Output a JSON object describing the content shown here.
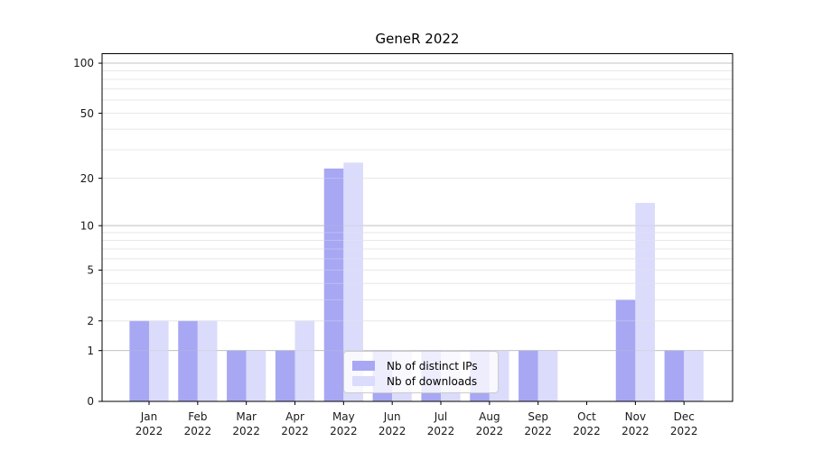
{
  "chart_data": {
    "type": "bar",
    "title": "GeneR 2022",
    "x_months": [
      "Jan",
      "Feb",
      "Mar",
      "Apr",
      "May",
      "Jun",
      "Jul",
      "Aug",
      "Sep",
      "Oct",
      "Nov",
      "Dec"
    ],
    "x_year": "2022",
    "series": [
      {
        "name": "Nb of distinct IPs",
        "color": "#a7a7f4",
        "values": [
          2,
          2,
          1,
          1,
          23,
          1,
          1,
          1,
          1,
          0,
          3,
          1
        ]
      },
      {
        "name": "Nb of downloads",
        "color": "#dbdbfb",
        "values": [
          2,
          2,
          1,
          2,
          25,
          1,
          1,
          1,
          1,
          0,
          14,
          1
        ]
      }
    ],
    "yscale": "log1p",
    "ylim": [
      0,
      114
    ],
    "yticks": [
      0,
      1,
      2,
      5,
      10,
      20,
      50,
      100
    ],
    "gridlines": {
      "major": [
        1,
        10,
        100
      ],
      "minor": [
        2,
        3,
        4,
        5,
        6,
        7,
        8,
        9,
        20,
        30,
        40,
        50,
        60,
        70,
        80,
        90
      ]
    },
    "grid": true,
    "legend_position": "lower-center"
  }
}
